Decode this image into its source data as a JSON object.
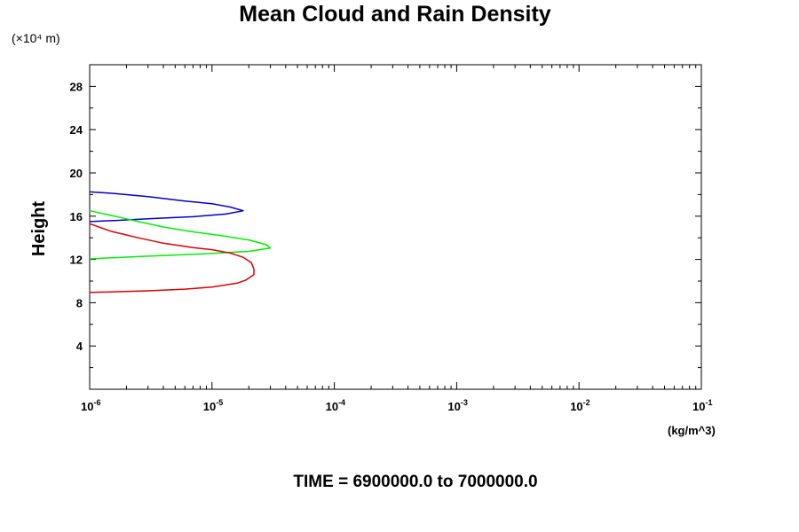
{
  "chart_data": {
    "type": "line",
    "title": "Mean Cloud and Rain Density",
    "ylabel": "Height",
    "y_scale_note": "(×10⁴ m)",
    "xunit": "(kg/m^3)",
    "footer": "TIME = 6900000.0 to 7000000.0",
    "xscale": "log",
    "xlim": [
      1e-06,
      0.1
    ],
    "ylim": [
      0,
      30
    ],
    "x_ticks": [
      {
        "base": "10",
        "exp": "-6",
        "value": 1e-06
      },
      {
        "base": "10",
        "exp": "-5",
        "value": 1e-05
      },
      {
        "base": "10",
        "exp": "-4",
        "value": 0.0001
      },
      {
        "base": "10",
        "exp": "-3",
        "value": 0.001
      },
      {
        "base": "10",
        "exp": "-2",
        "value": 0.01
      },
      {
        "base": "10",
        "exp": "-1",
        "value": 0.1
      }
    ],
    "y_ticks": [
      {
        "label": "4",
        "value": 4
      },
      {
        "label": "8",
        "value": 8
      },
      {
        "label": "12",
        "value": 12
      },
      {
        "label": "16",
        "value": 16
      },
      {
        "label": "20",
        "value": 20
      },
      {
        "label": "24",
        "value": 24
      },
      {
        "label": "28",
        "value": 28
      }
    ],
    "grid": false,
    "series": [
      {
        "color": "#0000cc",
        "points": [
          [
            1e-06,
            18.25
          ],
          [
            1.6e-06,
            18.1
          ],
          [
            3e-06,
            17.8
          ],
          [
            6e-06,
            17.4
          ],
          [
            1e-05,
            17.15
          ],
          [
            1.4e-05,
            16.85
          ],
          [
            1.8e-05,
            16.5
          ],
          [
            1.3e-05,
            16.2
          ],
          [
            7e-06,
            15.95
          ],
          [
            3e-06,
            15.75
          ],
          [
            1.6e-06,
            15.6
          ],
          [
            1e-06,
            15.5
          ]
        ]
      },
      {
        "color": "#00ee00",
        "points": [
          [
            1e-06,
            16.5
          ],
          [
            1.6e-06,
            16.0
          ],
          [
            2.5e-06,
            15.5
          ],
          [
            4e-06,
            15.0
          ],
          [
            7e-06,
            14.55
          ],
          [
            1.2e-05,
            14.2
          ],
          [
            2e-05,
            13.8
          ],
          [
            2.8e-05,
            13.35
          ],
          [
            3e-05,
            13.05
          ],
          [
            2e-05,
            12.75
          ],
          [
            8e-06,
            12.5
          ],
          [
            3e-06,
            12.3
          ],
          [
            1.5e-06,
            12.15
          ],
          [
            1e-06,
            12.05
          ]
        ]
      },
      {
        "color": "#dd0000",
        "points": [
          [
            1e-06,
            15.3
          ],
          [
            1.5e-06,
            14.6
          ],
          [
            2.5e-06,
            14.0
          ],
          [
            4e-06,
            13.5
          ],
          [
            7e-06,
            13.1
          ],
          [
            1e-05,
            12.9
          ],
          [
            1.4e-05,
            12.6
          ],
          [
            1.8e-05,
            12.2
          ],
          [
            2.1e-05,
            11.7
          ],
          [
            2.2e-05,
            11.1
          ],
          [
            2.2e-05,
            10.6
          ],
          [
            1.9e-05,
            10.1
          ],
          [
            1.6e-05,
            9.8
          ],
          [
            1e-05,
            9.45
          ],
          [
            6e-06,
            9.25
          ],
          [
            3e-06,
            9.1
          ],
          [
            1.5e-06,
            9.0
          ],
          [
            1e-06,
            8.95
          ]
        ]
      }
    ]
  }
}
